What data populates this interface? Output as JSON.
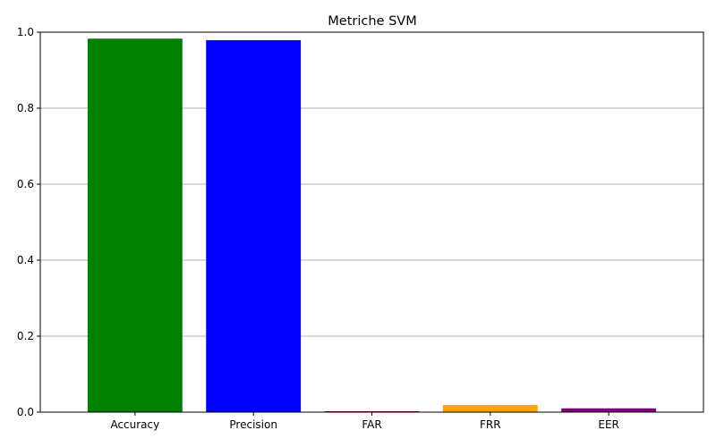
{
  "chart_data": {
    "type": "bar",
    "title": "Metriche SVM",
    "xlabel": "",
    "ylabel": "",
    "categories": [
      "Accuracy",
      "Precision",
      "FAR",
      "FRR",
      "EER"
    ],
    "values": [
      0.983,
      0.979,
      0.002,
      0.019,
      0.01
    ],
    "colors": [
      "#008000",
      "#0000ff",
      "#8b0000",
      "#ffa500",
      "#800080"
    ],
    "ylim": [
      0,
      1.0
    ],
    "yticks": [
      "0.0",
      "0.2",
      "0.4",
      "0.6",
      "0.8",
      "1.0"
    ],
    "grid": {
      "axis": "y",
      "on": true,
      "color": "#b0b0b0"
    }
  }
}
